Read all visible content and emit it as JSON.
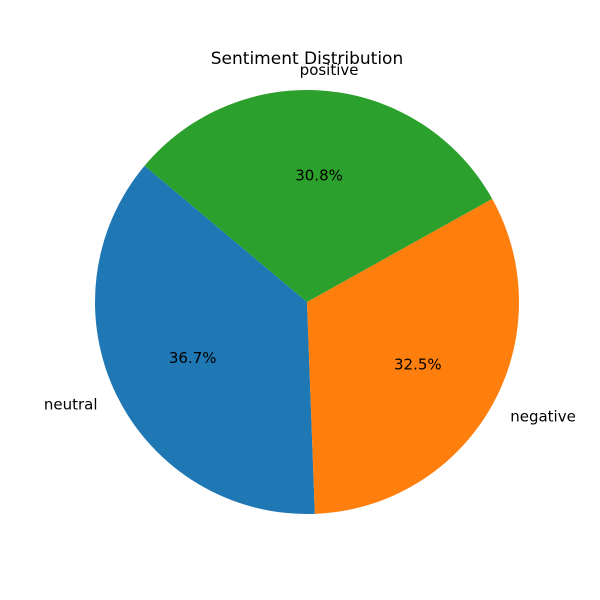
{
  "chart_data": {
    "type": "pie",
    "title": "Sentiment Distribution",
    "categories": [
      "neutral",
      "negative",
      "positive"
    ],
    "values": [
      36.7,
      32.5,
      30.8
    ],
    "labels": [
      "36.7%",
      "32.5%",
      "30.8%"
    ],
    "colors": [
      "#1f77b4",
      "#ff7f0e",
      "#2ca02c"
    ],
    "legend": false
  }
}
